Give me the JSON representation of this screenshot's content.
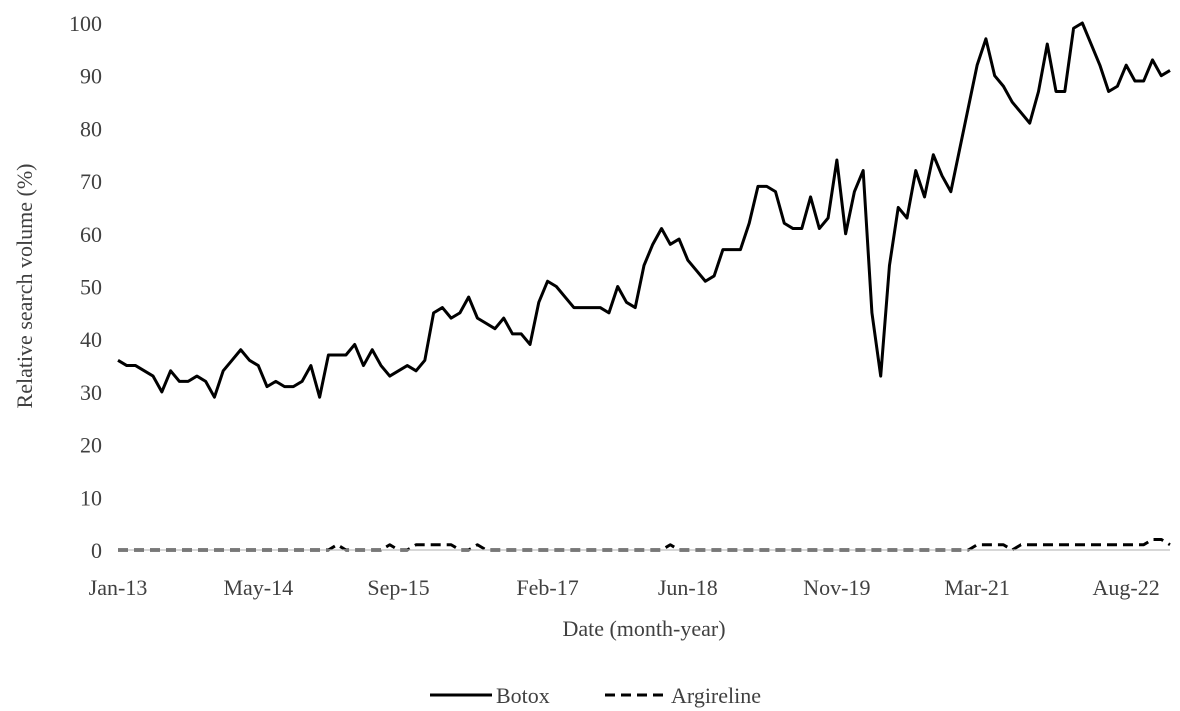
{
  "chart_data": {
    "type": "line",
    "title": "",
    "xlabel": "Date (month-year)",
    "ylabel": "Relative search volume (%)",
    "ylim": [
      0,
      100
    ],
    "yticks": [
      0,
      10,
      20,
      30,
      40,
      50,
      60,
      70,
      80,
      90,
      100
    ],
    "x_start": "Jan-13",
    "x_end": "Dec-22",
    "xtick_labels": [
      "Jan-13",
      "May-14",
      "Sep-15",
      "Feb-17",
      "Jun-18",
      "Nov-19",
      "Mar-21",
      "Aug-22"
    ],
    "grid": false,
    "legend_position": "bottom",
    "series": [
      {
        "name": "Botox",
        "style": "solid",
        "color": "#000000",
        "values": [
          36,
          35,
          35,
          34,
          33,
          30,
          34,
          32,
          32,
          33,
          32,
          29,
          34,
          36,
          38,
          36,
          35,
          31,
          32,
          31,
          31,
          32,
          35,
          29,
          37,
          37,
          37,
          39,
          35,
          38,
          35,
          33,
          34,
          35,
          34,
          36,
          45,
          46,
          44,
          45,
          48,
          44,
          43,
          42,
          44,
          41,
          41,
          39,
          47,
          51,
          50,
          48,
          46,
          46,
          46,
          46,
          45,
          50,
          47,
          46,
          54,
          58,
          61,
          58,
          59,
          55,
          53,
          51,
          52,
          57,
          57,
          57,
          62,
          69,
          69,
          68,
          62,
          61,
          61,
          67,
          61,
          63,
          74,
          60,
          68,
          72,
          45,
          33,
          54,
          65,
          63,
          72,
          67,
          75,
          71,
          68,
          76,
          84,
          92,
          97,
          90,
          88,
          85,
          83,
          81,
          87,
          96,
          87,
          87,
          99,
          100,
          96,
          92,
          87,
          88,
          92,
          89,
          89,
          93,
          90,
          91
        ]
      },
      {
        "name": "Argireline",
        "style": "dashed",
        "color": "#000000",
        "values": [
          0,
          0,
          0,
          0,
          0,
          0,
          0,
          0,
          0,
          0,
          0,
          0,
          0,
          0,
          0,
          0,
          0,
          0,
          0,
          0,
          0,
          0,
          0,
          0,
          0,
          1,
          0,
          0,
          0,
          0,
          0,
          1,
          0,
          0,
          1,
          1,
          1,
          1,
          1,
          0,
          0,
          1,
          0,
          0,
          0,
          0,
          0,
          0,
          0,
          0,
          0,
          0,
          0,
          0,
          0,
          0,
          0,
          0,
          0,
          0,
          0,
          0,
          0,
          1,
          0,
          0,
          0,
          0,
          0,
          0,
          0,
          0,
          0,
          0,
          0,
          0,
          0,
          0,
          0,
          0,
          0,
          0,
          0,
          0,
          0,
          0,
          0,
          0,
          0,
          0,
          0,
          0,
          0,
          0,
          0,
          0,
          0,
          0,
          1,
          1,
          1,
          1,
          0,
          1,
          1,
          1,
          1,
          1,
          1,
          1,
          1,
          1,
          1,
          1,
          1,
          1,
          1,
          1,
          2,
          2,
          1
        ]
      }
    ]
  }
}
